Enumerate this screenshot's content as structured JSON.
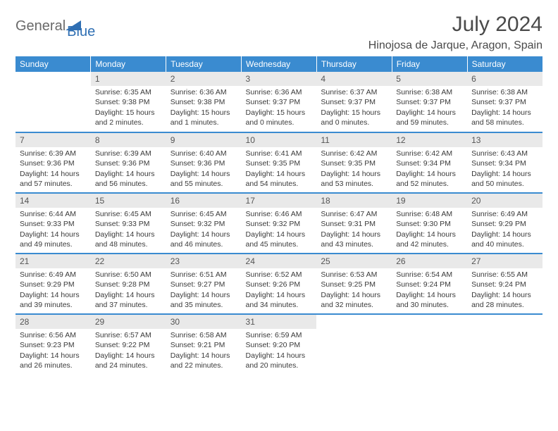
{
  "brand": {
    "part1": "General",
    "part2": "Blue"
  },
  "title": "July 2024",
  "location": "Hinojosa de Jarque, Aragon, Spain",
  "colors": {
    "header_bg": "#3a8bd0",
    "header_text": "#ffffff",
    "daynum_bg": "#e9e9e9",
    "border": "#3a8bd0",
    "text": "#3a3a3a",
    "brand_gray": "#6a6a6a",
    "brand_blue": "#2f6fb3"
  },
  "weekdays": [
    "Sunday",
    "Monday",
    "Tuesday",
    "Wednesday",
    "Thursday",
    "Friday",
    "Saturday"
  ],
  "weeks": [
    [
      null,
      {
        "n": "1",
        "sunrise": "6:35 AM",
        "sunset": "9:38 PM",
        "daylight": "15 hours and 2 minutes."
      },
      {
        "n": "2",
        "sunrise": "6:36 AM",
        "sunset": "9:38 PM",
        "daylight": "15 hours and 1 minutes."
      },
      {
        "n": "3",
        "sunrise": "6:36 AM",
        "sunset": "9:37 PM",
        "daylight": "15 hours and 0 minutes."
      },
      {
        "n": "4",
        "sunrise": "6:37 AM",
        "sunset": "9:37 PM",
        "daylight": "15 hours and 0 minutes."
      },
      {
        "n": "5",
        "sunrise": "6:38 AM",
        "sunset": "9:37 PM",
        "daylight": "14 hours and 59 minutes."
      },
      {
        "n": "6",
        "sunrise": "6:38 AM",
        "sunset": "9:37 PM",
        "daylight": "14 hours and 58 minutes."
      }
    ],
    [
      {
        "n": "7",
        "sunrise": "6:39 AM",
        "sunset": "9:36 PM",
        "daylight": "14 hours and 57 minutes."
      },
      {
        "n": "8",
        "sunrise": "6:39 AM",
        "sunset": "9:36 PM",
        "daylight": "14 hours and 56 minutes."
      },
      {
        "n": "9",
        "sunrise": "6:40 AM",
        "sunset": "9:36 PM",
        "daylight": "14 hours and 55 minutes."
      },
      {
        "n": "10",
        "sunrise": "6:41 AM",
        "sunset": "9:35 PM",
        "daylight": "14 hours and 54 minutes."
      },
      {
        "n": "11",
        "sunrise": "6:42 AM",
        "sunset": "9:35 PM",
        "daylight": "14 hours and 53 minutes."
      },
      {
        "n": "12",
        "sunrise": "6:42 AM",
        "sunset": "9:34 PM",
        "daylight": "14 hours and 52 minutes."
      },
      {
        "n": "13",
        "sunrise": "6:43 AM",
        "sunset": "9:34 PM",
        "daylight": "14 hours and 50 minutes."
      }
    ],
    [
      {
        "n": "14",
        "sunrise": "6:44 AM",
        "sunset": "9:33 PM",
        "daylight": "14 hours and 49 minutes."
      },
      {
        "n": "15",
        "sunrise": "6:45 AM",
        "sunset": "9:33 PM",
        "daylight": "14 hours and 48 minutes."
      },
      {
        "n": "16",
        "sunrise": "6:45 AM",
        "sunset": "9:32 PM",
        "daylight": "14 hours and 46 minutes."
      },
      {
        "n": "17",
        "sunrise": "6:46 AM",
        "sunset": "9:32 PM",
        "daylight": "14 hours and 45 minutes."
      },
      {
        "n": "18",
        "sunrise": "6:47 AM",
        "sunset": "9:31 PM",
        "daylight": "14 hours and 43 minutes."
      },
      {
        "n": "19",
        "sunrise": "6:48 AM",
        "sunset": "9:30 PM",
        "daylight": "14 hours and 42 minutes."
      },
      {
        "n": "20",
        "sunrise": "6:49 AM",
        "sunset": "9:29 PM",
        "daylight": "14 hours and 40 minutes."
      }
    ],
    [
      {
        "n": "21",
        "sunrise": "6:49 AM",
        "sunset": "9:29 PM",
        "daylight": "14 hours and 39 minutes."
      },
      {
        "n": "22",
        "sunrise": "6:50 AM",
        "sunset": "9:28 PM",
        "daylight": "14 hours and 37 minutes."
      },
      {
        "n": "23",
        "sunrise": "6:51 AM",
        "sunset": "9:27 PM",
        "daylight": "14 hours and 35 minutes."
      },
      {
        "n": "24",
        "sunrise": "6:52 AM",
        "sunset": "9:26 PM",
        "daylight": "14 hours and 34 minutes."
      },
      {
        "n": "25",
        "sunrise": "6:53 AM",
        "sunset": "9:25 PM",
        "daylight": "14 hours and 32 minutes."
      },
      {
        "n": "26",
        "sunrise": "6:54 AM",
        "sunset": "9:24 PM",
        "daylight": "14 hours and 30 minutes."
      },
      {
        "n": "27",
        "sunrise": "6:55 AM",
        "sunset": "9:24 PM",
        "daylight": "14 hours and 28 minutes."
      }
    ],
    [
      {
        "n": "28",
        "sunrise": "6:56 AM",
        "sunset": "9:23 PM",
        "daylight": "14 hours and 26 minutes."
      },
      {
        "n": "29",
        "sunrise": "6:57 AM",
        "sunset": "9:22 PM",
        "daylight": "14 hours and 24 minutes."
      },
      {
        "n": "30",
        "sunrise": "6:58 AM",
        "sunset": "9:21 PM",
        "daylight": "14 hours and 22 minutes."
      },
      {
        "n": "31",
        "sunrise": "6:59 AM",
        "sunset": "9:20 PM",
        "daylight": "14 hours and 20 minutes."
      },
      null,
      null,
      null
    ]
  ],
  "labels": {
    "sunrise": "Sunrise:",
    "sunset": "Sunset:",
    "daylight": "Daylight:"
  }
}
